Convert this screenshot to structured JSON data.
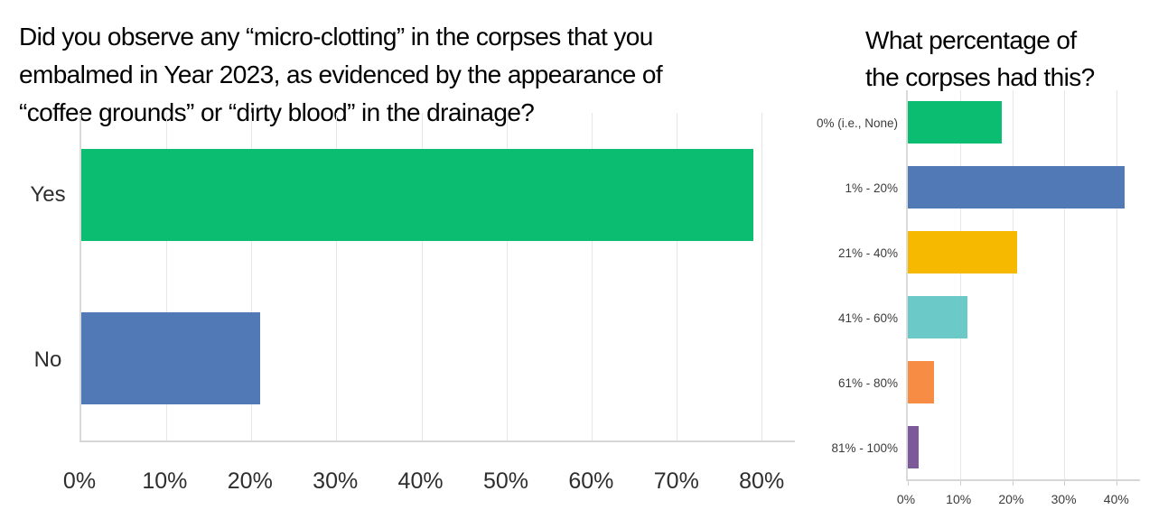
{
  "slide": {
    "background": "#ffffff"
  },
  "chart_data": [
    {
      "type": "bar",
      "orientation": "horizontal",
      "title": "Did you observe any “micro-clotting” in the corpses that you embalmed in Year 2023, as evidenced by the appearance of “coffee grounds” or “dirty blood” in the drainage?",
      "title_lines": [
        "Did you observe any “micro-clotting” in the corpses that you",
        "embalmed in Year 2023, as evidenced by the appearance of",
        "“coffee grounds” or “dirty blood” in the drainage?"
      ],
      "categories": [
        "Yes",
        "No"
      ],
      "values": [
        79,
        21
      ],
      "value_unit": "%",
      "bar_colors": [
        "#0abd70",
        "#5179b5"
      ],
      "x_tick_labels": [
        "0%",
        "10%",
        "20%",
        "30%",
        "40%",
        "50%",
        "60%",
        "70%",
        "80%"
      ],
      "x_tick_values": [
        0,
        10,
        20,
        30,
        40,
        50,
        60,
        70,
        80
      ],
      "xlim": [
        0,
        83.9
      ],
      "grid": true,
      "tick_marks": false,
      "legend": "none"
    },
    {
      "type": "bar",
      "orientation": "horizontal",
      "title": "What percentage of the corpses had this?",
      "title_lines": [
        "What percentage of",
        "the corpses had this?"
      ],
      "categories": [
        "0% (i.e., None)",
        "1% - 20%",
        "21% - 40%",
        "41% - 60%",
        "61% - 80%",
        "81% - 100%"
      ],
      "values": [
        18,
        41.5,
        21,
        11.5,
        5,
        2
      ],
      "value_unit": "%",
      "bar_colors": [
        "#0abd70",
        "#5179b5",
        "#f7b800",
        "#6bc9c7",
        "#f78c45",
        "#7c5a99"
      ],
      "x_tick_labels": [
        "0%",
        "10%",
        "20%",
        "30%",
        "40%"
      ],
      "x_tick_values": [
        0,
        10,
        20,
        30,
        40
      ],
      "xlim": [
        0,
        44.5
      ],
      "grid": true,
      "tick_marks": true,
      "legend": "none"
    }
  ]
}
